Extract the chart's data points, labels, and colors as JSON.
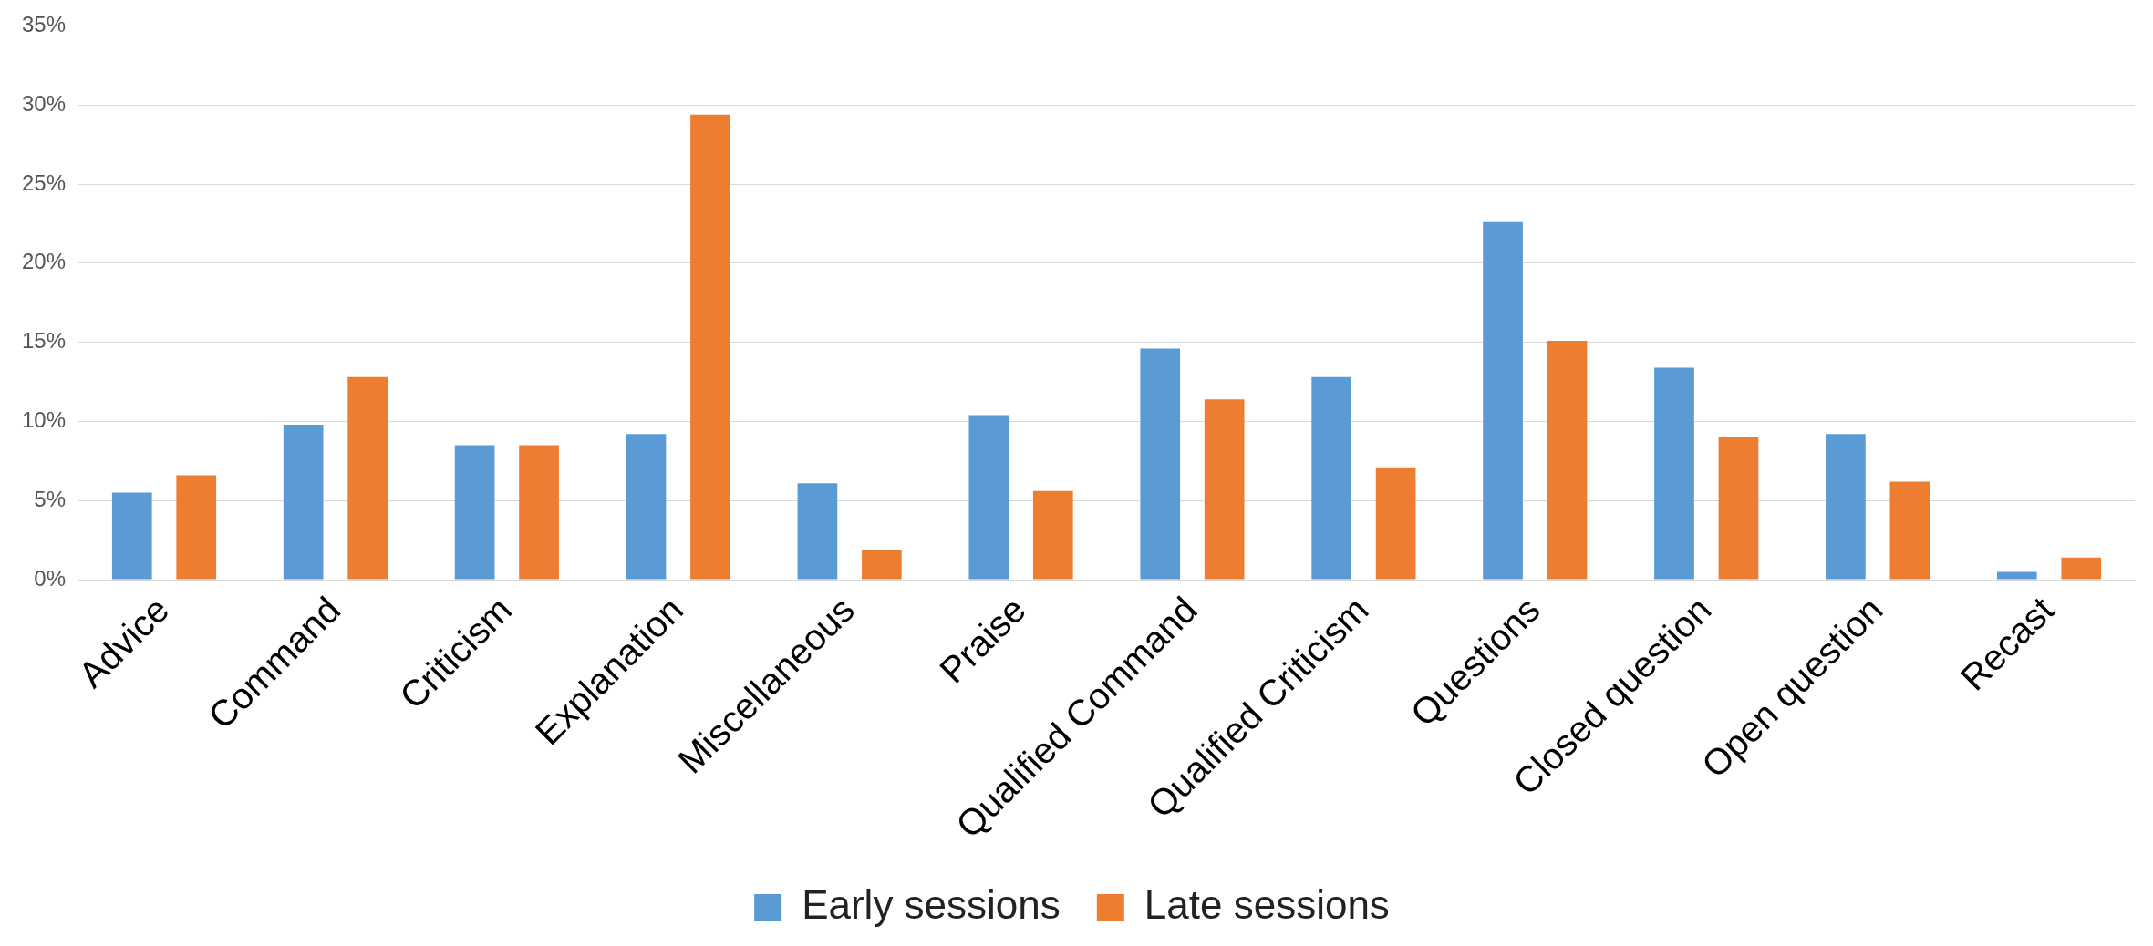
{
  "chart_data": {
    "type": "bar",
    "categories": [
      "Advice",
      "Command",
      "Criticism",
      "Explanation",
      "Miscellaneous",
      "Praise",
      "Qualified Command",
      "Qualified Criticism",
      "Questions",
      "Closed question",
      "Open question",
      "Recast"
    ],
    "series": [
      {
        "name": "Early sessions",
        "color": "#5b9bd5",
        "values": [
          5.5,
          9.8,
          8.5,
          9.2,
          6.1,
          10.4,
          14.6,
          12.8,
          22.6,
          13.4,
          9.2,
          0.5
        ]
      },
      {
        "name": "Late sessions",
        "color": "#ed7d31",
        "values": [
          6.6,
          12.8,
          8.5,
          29.4,
          1.9,
          5.6,
          11.4,
          7.1,
          15.1,
          9.0,
          6.2,
          1.4
        ]
      }
    ],
    "ylim": [
      0,
      35
    ],
    "yticks": [
      {
        "value": 0,
        "label": "0%"
      },
      {
        "value": 5,
        "label": "5%"
      },
      {
        "value": 10,
        "label": "10%"
      },
      {
        "value": 15,
        "label": "15%"
      },
      {
        "value": 20,
        "label": "20%"
      },
      {
        "value": 25,
        "label": "25%"
      },
      {
        "value": 30,
        "label": "30%"
      },
      {
        "value": 35,
        "label": "35%"
      }
    ],
    "grid": "y",
    "legend": "bottom"
  }
}
